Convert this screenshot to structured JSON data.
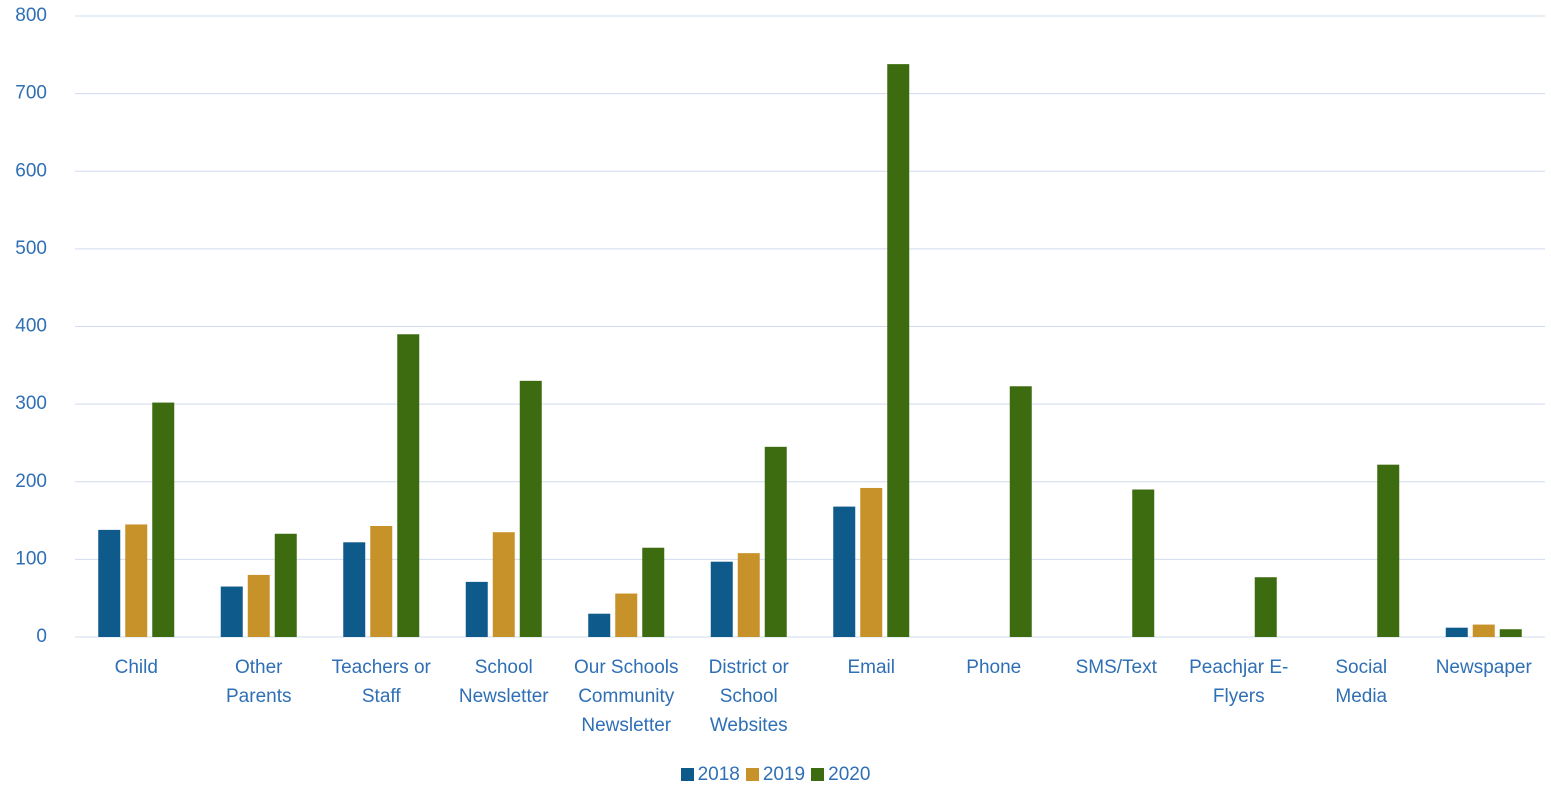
{
  "chart_data": {
    "type": "bar",
    "categories": [
      "Child",
      "Other Parents",
      "Teachers or Staff",
      "School Newsletter",
      "Our Schools Community Newsletter",
      "District or School Websites",
      "Email",
      "Phone",
      "SMS/Text",
      "Peachjar E-Flyers",
      "Social Media",
      "Newspaper"
    ],
    "series": [
      {
        "name": "2018",
        "color": "#0e5a8a",
        "values": [
          138,
          65,
          122,
          71,
          30,
          97,
          168,
          null,
          null,
          null,
          null,
          12
        ]
      },
      {
        "name": "2019",
        "color": "#c8922a",
        "values": [
          145,
          80,
          143,
          135,
          56,
          108,
          192,
          null,
          null,
          null,
          null,
          16
        ]
      },
      {
        "name": "2020",
        "color": "#3d6b0f",
        "values": [
          302,
          133,
          390,
          330,
          115,
          245,
          738,
          323,
          190,
          77,
          222,
          10
        ]
      }
    ],
    "ylim": [
      0,
      800
    ],
    "yticks": [
      0,
      100,
      200,
      300,
      400,
      500,
      600,
      700,
      800
    ],
    "grid": true,
    "legend": "bottom"
  }
}
